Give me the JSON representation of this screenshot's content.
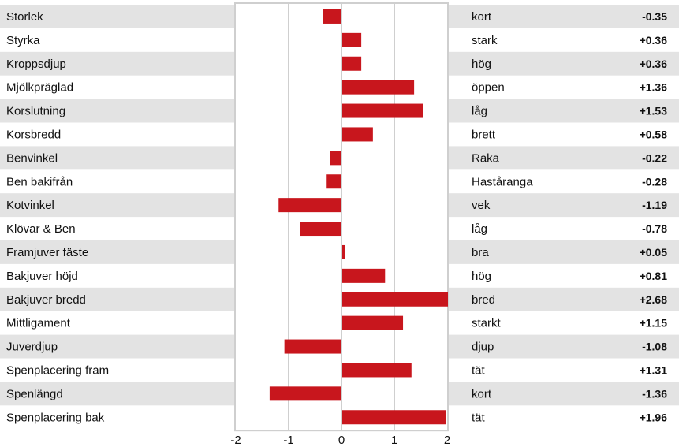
{
  "chart_data": {
    "type": "bar",
    "orientation": "horizontal",
    "xlim": [
      -2,
      2
    ],
    "x_ticks": [
      "-2",
      "-1",
      "0",
      "1",
      "2"
    ],
    "grid": true,
    "bar_color": "#c8161d",
    "stripe_color": "#e3e3e3",
    "gridline_color": "#cfcfcf",
    "rows": [
      {
        "trait": "Storlek",
        "descriptor": "kort",
        "value": -0.35,
        "label": "-0.35"
      },
      {
        "trait": "Styrka",
        "descriptor": "stark",
        "value": 0.36,
        "label": "+0.36"
      },
      {
        "trait": "Kroppsdjup",
        "descriptor": "hög",
        "value": 0.36,
        "label": "+0.36"
      },
      {
        "trait": "Mjölkpräglad",
        "descriptor": "öppen",
        "value": 1.36,
        "label": "+1.36"
      },
      {
        "trait": "Korslutning",
        "descriptor": "låg",
        "value": 1.53,
        "label": "+1.53"
      },
      {
        "trait": "Korsbredd",
        "descriptor": "brett",
        "value": 0.58,
        "label": "+0.58"
      },
      {
        "trait": "Benvinkel",
        "descriptor": "Raka",
        "value": -0.22,
        "label": "-0.22"
      },
      {
        "trait": "Ben bakifrån",
        "descriptor": "Haståranga",
        "value": -0.28,
        "label": "-0.28"
      },
      {
        "trait": "Kotvinkel",
        "descriptor": "vek",
        "value": -1.19,
        "label": "-1.19"
      },
      {
        "trait": "Klövar & Ben",
        "descriptor": "låg",
        "value": -0.78,
        "label": "-0.78"
      },
      {
        "trait": "Framjuver fäste",
        "descriptor": "bra",
        "value": 0.05,
        "label": "+0.05"
      },
      {
        "trait": "Bakjuver höjd",
        "descriptor": "hög",
        "value": 0.81,
        "label": "+0.81"
      },
      {
        "trait": "Bakjuver bredd",
        "descriptor": "bred",
        "value": 2.68,
        "label": "+2.68"
      },
      {
        "trait": "Mittligament",
        "descriptor": "starkt",
        "value": 1.15,
        "label": "+1.15"
      },
      {
        "trait": "Juverdjup",
        "descriptor": "djup",
        "value": -1.08,
        "label": "-1.08"
      },
      {
        "trait": "Spenplacering fram",
        "descriptor": "tät",
        "value": 1.31,
        "label": "+1.31"
      },
      {
        "trait": "Spenlängd",
        "descriptor": "kort",
        "value": -1.36,
        "label": "-1.36"
      },
      {
        "trait": "Spenplacering bak",
        "descriptor": "tät",
        "value": 1.96,
        "label": "+1.96"
      }
    ]
  }
}
